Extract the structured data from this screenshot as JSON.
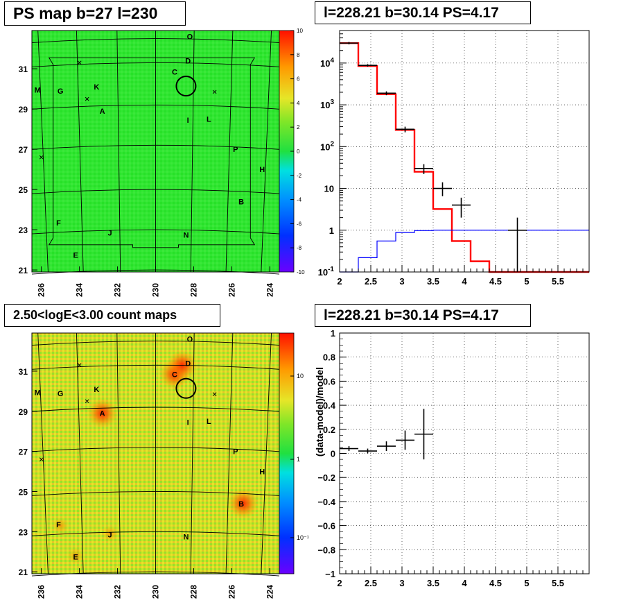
{
  "panels": {
    "ps_map": {
      "title": "PS map b=27 l=230",
      "x_ticks": [
        "236",
        "234",
        "232",
        "230",
        "228",
        "226",
        "224"
      ],
      "y_ticks": [
        "31",
        "29",
        "27",
        "25",
        "23",
        "21"
      ],
      "colorbar_ticks": [
        "10",
        "8",
        "6",
        "4",
        "2",
        "0",
        "-2",
        "-4",
        "-6",
        "-8",
        "-10"
      ],
      "colorbar_range": [
        -10,
        10
      ]
    },
    "count_map": {
      "title": "2.50<logE<3.00 count maps",
      "x_ticks": [
        "236",
        "234",
        "232",
        "230",
        "228",
        "226",
        "224"
      ],
      "y_ticks": [
        "31",
        "29",
        "27",
        "25",
        "23",
        "21"
      ],
      "colorbar_ticks": [
        "10",
        "1",
        "10⁻¹"
      ],
      "colorbar_scale": "log"
    },
    "spectrum": {
      "title": "l=228.21 b=30.14 PS=4.17"
    },
    "residual": {
      "title": "l=228.21 b=30.14 PS=4.17"
    }
  },
  "source_labels": [
    "O",
    "D",
    "C",
    "M",
    "G",
    "K",
    "A",
    "I",
    "L",
    "P",
    "H",
    "B",
    "F",
    "J",
    "N",
    "E"
  ],
  "colors": {
    "ps_background": "#2ee632",
    "count_background": "#c8e628",
    "model_histogram": "#ff0000",
    "background_histogram": "#0000ff",
    "data_points": "#000000"
  },
  "chart_data": [
    {
      "type": "heatmap",
      "name": "ps_map",
      "title": "PS map b=27 l=230",
      "xlim": [
        236.5,
        223.5
      ],
      "ylim": [
        20.9,
        32.9
      ],
      "x_ticks": [
        236,
        234,
        232,
        230,
        228,
        226,
        224
      ],
      "y_ticks": [
        31,
        29,
        27,
        25,
        23,
        21
      ],
      "z_range": [
        -10,
        10
      ],
      "highlight_circle": {
        "l": 228.4,
        "b": 30.14
      },
      "sources": [
        {
          "label": "O",
          "l": 228.2,
          "b": 32.6
        },
        {
          "label": "D",
          "l": 228.3,
          "b": 31.4
        },
        {
          "label": "C",
          "l": 229.0,
          "b": 30.85
        },
        {
          "label": "M",
          "l": 236.2,
          "b": 29.95
        },
        {
          "label": "G",
          "l": 235.0,
          "b": 29.9
        },
        {
          "label": "K",
          "l": 233.1,
          "b": 30.1
        },
        {
          "label": "A",
          "l": 232.8,
          "b": 28.9
        },
        {
          "label": "I",
          "l": 228.3,
          "b": 28.45
        },
        {
          "label": "L",
          "l": 227.2,
          "b": 28.5
        },
        {
          "label": "P",
          "l": 225.8,
          "b": 27.0
        },
        {
          "label": "H",
          "l": 224.4,
          "b": 26.0
        },
        {
          "label": "B",
          "l": 225.5,
          "b": 24.4
        },
        {
          "label": "F",
          "l": 235.1,
          "b": 23.35
        },
        {
          "label": "J",
          "l": 232.4,
          "b": 22.85
        },
        {
          "label": "N",
          "l": 228.4,
          "b": 22.75
        },
        {
          "label": "E",
          "l": 234.2,
          "b": 21.75
        }
      ],
      "crosses": [
        {
          "l": 234.0,
          "b": 31.3
        },
        {
          "l": 233.6,
          "b": 29.5
        },
        {
          "l": 226.9,
          "b": 29.85
        },
        {
          "l": 236.0,
          "b": 26.6
        }
      ]
    },
    {
      "type": "heatmap",
      "name": "count_map",
      "title": "2.50<logE<3.00 count maps",
      "xlim": [
        236.5,
        223.5
      ],
      "ylim": [
        20.9,
        32.9
      ],
      "x_ticks": [
        236,
        234,
        232,
        230,
        228,
        226,
        224
      ],
      "y_ticks": [
        31,
        29,
        27,
        25,
        23,
        21
      ],
      "z_scale": "log",
      "z_ticks": [
        10,
        1,
        0.1
      ],
      "hotspots": [
        {
          "label": "A",
          "l": 232.8,
          "b": 28.9
        },
        {
          "label": "C",
          "l": 229.0,
          "b": 30.85
        },
        {
          "label": "D",
          "l": 228.6,
          "b": 31.3
        },
        {
          "label": "B",
          "l": 225.4,
          "b": 24.4
        },
        {
          "label": "F",
          "l": 235.0,
          "b": 23.3
        },
        {
          "label": "J",
          "l": 232.4,
          "b": 22.9
        },
        {
          "label": "E",
          "l": 234.2,
          "b": 21.8
        }
      ]
    },
    {
      "type": "line",
      "name": "spectrum",
      "title": "l=228.21 b=30.14 PS=4.17",
      "xlim": [
        2,
        6
      ],
      "ylim": [
        0.1,
        60000
      ],
      "yscale": "log",
      "x_ticks": [
        2,
        2.5,
        3,
        3.5,
        4,
        4.5,
        5,
        5.5
      ],
      "y_ticks": [
        0.1,
        1,
        10,
        100,
        1000,
        10000
      ],
      "grid": true,
      "bin_edges": [
        2.0,
        2.3,
        2.6,
        2.9,
        3.2,
        3.5,
        3.8,
        4.1,
        4.4,
        4.7,
        5.0,
        5.3,
        5.6,
        6.0
      ],
      "series": [
        {
          "values": [
            30000,
            8500,
            1800,
            250,
            25,
            3.2,
            0.55,
            0.18,
            0.1,
            0.1,
            0.1,
            0.1,
            0.1
          ]
        },
        {
          "values": [
            0.1,
            0.22,
            0.55,
            0.88,
            0.98,
            1.0,
            1.0,
            1.0,
            1.0,
            1.0,
            1.0,
            1.0,
            1.0
          ]
        }
      ],
      "points": [
        {
          "x": 2.15,
          "y": 30000,
          "xerr": 0.15,
          "ylo": 28000,
          "yhi": 32000
        },
        {
          "x": 2.45,
          "y": 8800,
          "xerr": 0.15,
          "ylo": 8200,
          "yhi": 9400
        },
        {
          "x": 2.75,
          "y": 1900,
          "xerr": 0.15,
          "ylo": 1700,
          "yhi": 2100
        },
        {
          "x": 3.05,
          "y": 260,
          "xerr": 0.15,
          "ylo": 220,
          "yhi": 300
        },
        {
          "x": 3.35,
          "y": 30,
          "xerr": 0.15,
          "ylo": 22,
          "yhi": 38
        },
        {
          "x": 3.65,
          "y": 10,
          "xerr": 0.15,
          "ylo": 6.5,
          "yhi": 14
        },
        {
          "x": 3.95,
          "y": 4,
          "xerr": 0.15,
          "ylo": 2,
          "yhi": 6
        },
        {
          "x": 4.85,
          "y": 1,
          "xerr": 0.15,
          "ylo": 0.1,
          "yhi": 2
        }
      ]
    },
    {
      "type": "scatter",
      "name": "residual",
      "title": "l=228.21 b=30.14 PS=4.17",
      "ylabel": "(data-model)/model",
      "xlim": [
        2,
        6
      ],
      "ylim": [
        -1,
        1
      ],
      "x_ticks": [
        2,
        2.5,
        3,
        3.5,
        4,
        4.5,
        5,
        5.5
      ],
      "y_ticks": [
        -1,
        -0.8,
        -0.6,
        -0.4,
        -0.2,
        0,
        0.2,
        0.4,
        0.6,
        0.8,
        1
      ],
      "grid": true,
      "points": [
        {
          "x": 2.15,
          "y": 0.04,
          "xerr": 0.15,
          "yerr": 0.02
        },
        {
          "x": 2.45,
          "y": 0.02,
          "xerr": 0.15,
          "yerr": 0.02
        },
        {
          "x": 2.75,
          "y": 0.06,
          "xerr": 0.15,
          "yerr": 0.04
        },
        {
          "x": 3.05,
          "y": 0.11,
          "xerr": 0.15,
          "yerr": 0.08
        },
        {
          "x": 3.35,
          "y": 0.16,
          "xerr": 0.15,
          "yerr": 0.21
        }
      ]
    }
  ]
}
